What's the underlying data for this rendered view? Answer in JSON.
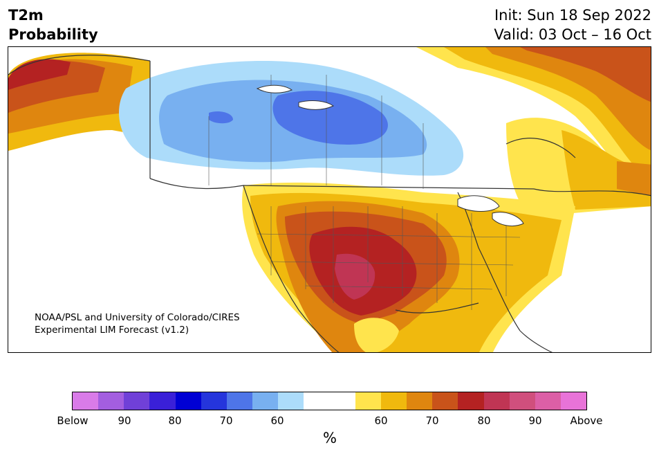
{
  "title": {
    "line1": "T2m",
    "line2": "Probability"
  },
  "dates": {
    "init": "Init: Sun 18 Sep 2022",
    "valid": "Valid: 03 Oct – 16 Oct"
  },
  "credit": {
    "line1": "NOAA/PSL and University of Colorado/CIRES",
    "line2": "Experimental LIM Forecast (v1.2)"
  },
  "colorbar": {
    "colors": [
      "#d97be8",
      "#a35ee0",
      "#7040d8",
      "#3a20d8",
      "#0000d4",
      "#2535dc",
      "#4e75e8",
      "#78b0f0",
      "#acdcfa",
      "#ffffff",
      "#ffffff",
      "#ffe44d",
      "#f0b90e",
      "#df860f",
      "#c9531a",
      "#b42222",
      "#c03554",
      "#d04f7d",
      "#dc5fa6",
      "#e873d8"
    ],
    "labels": [
      "Below",
      "90",
      "80",
      "70",
      "60",
      "60",
      "70",
      "80",
      "90",
      "Above"
    ],
    "unit": "%"
  },
  "colors": {
    "cold_light": "#acdcfa",
    "cold_mid": "#78b0f0",
    "cold_dark": "#4e75e8",
    "warm_light": "#ffe44d",
    "warm_mid": "#f0b90e",
    "warm_orange": "#df860f",
    "warm_dark": "#c9531a",
    "warm_red": "#b42222",
    "warm_magenta": "#c03554"
  }
}
